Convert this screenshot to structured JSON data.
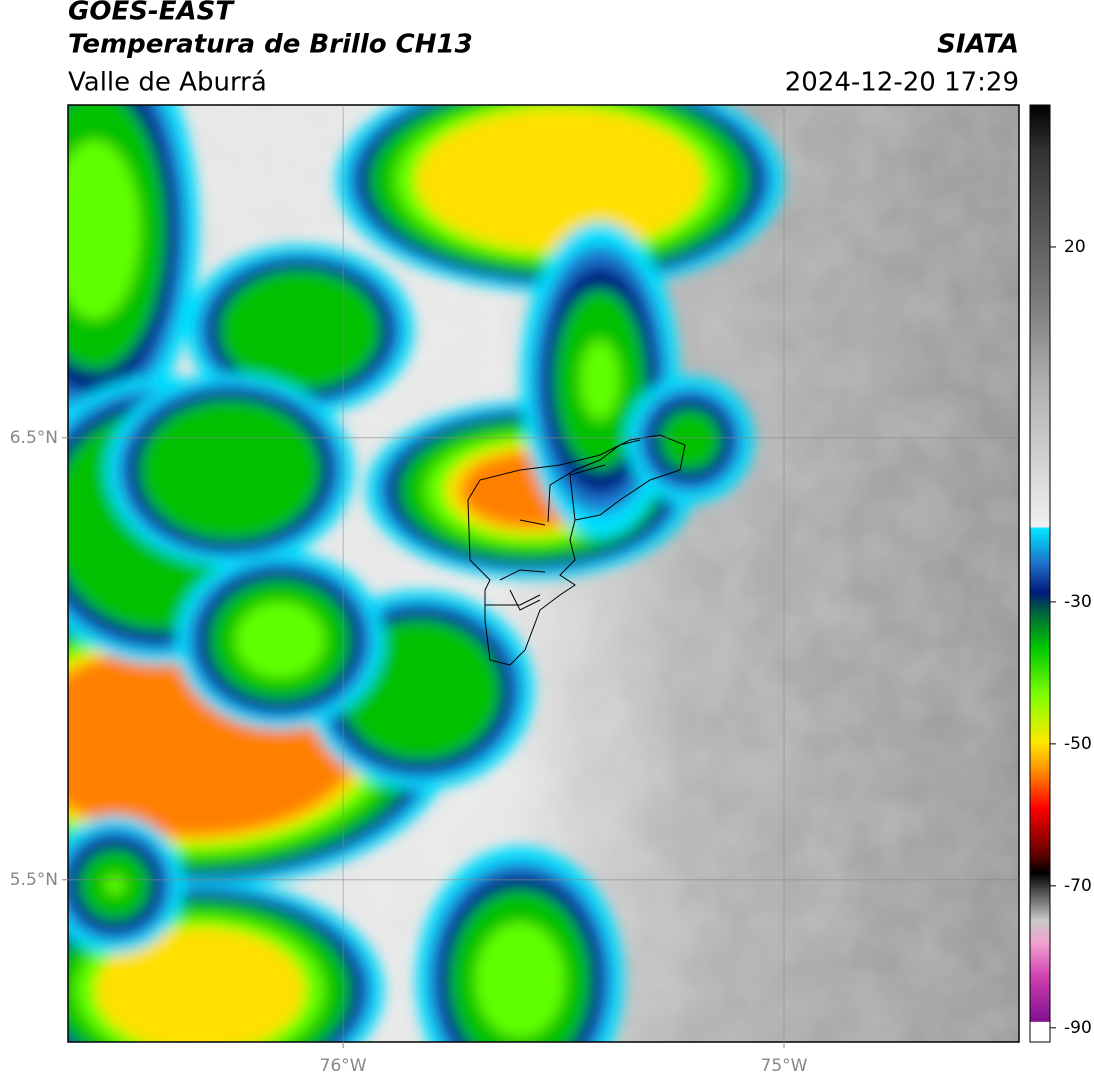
{
  "header": {
    "title": "GOES-EAST",
    "subtitle": "Temperatura de Brillo CH13",
    "region": "Valle de Aburrá",
    "source": "SIATA",
    "timestamp": "2024-12-20 17:29"
  },
  "map": {
    "xlim": [
      -76.624,
      -74.467
    ],
    "ylim": [
      5.133,
      7.253
    ],
    "xticks": [
      {
        "value": -76,
        "label": "76°W"
      },
      {
        "value": -75,
        "label": "75°W"
      }
    ],
    "yticks": [
      {
        "value": 6.5,
        "label": "6.5°N"
      },
      {
        "value": 5.5,
        "label": "5.5°N"
      }
    ],
    "grid": true
  },
  "colorbar": {
    "lim": [
      -92,
      40
    ],
    "ticks": [
      20,
      -30,
      -50,
      -70,
      -90
    ]
  }
}
